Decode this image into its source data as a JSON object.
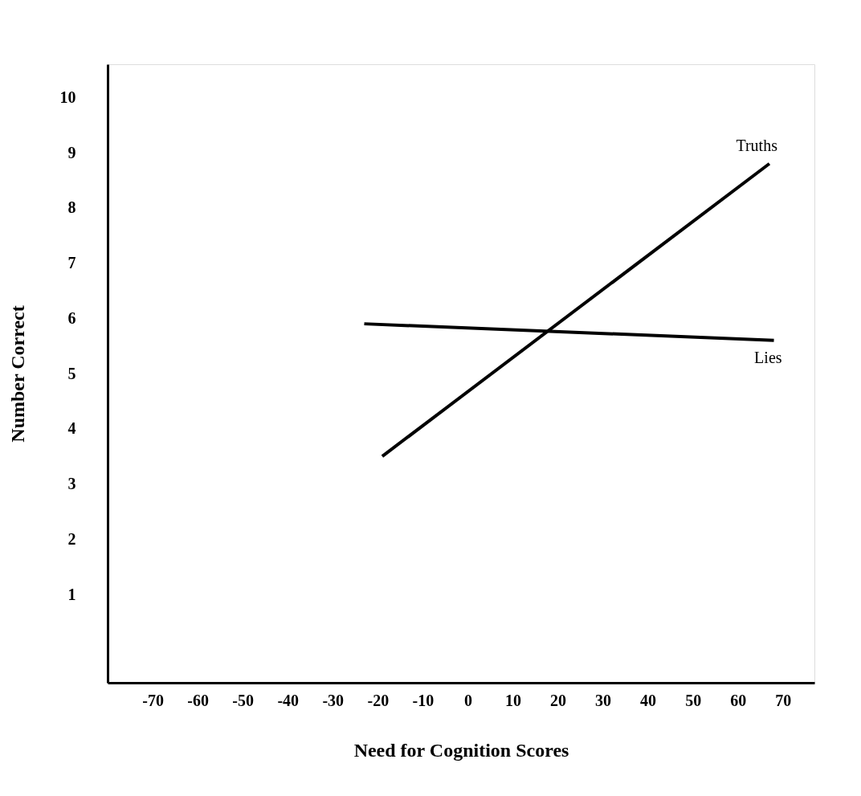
{
  "chart_data": {
    "type": "line",
    "xlabel": "Need for Cognition Scores",
    "ylabel": "Number Correct",
    "xlim": [
      -80,
      77
    ],
    "ylim": [
      -0.6,
      10.6
    ],
    "xticks": [
      -70,
      -60,
      -50,
      -40,
      -30,
      -20,
      -10,
      0,
      10,
      20,
      30,
      40,
      50,
      60,
      70
    ],
    "yticks": [
      1,
      2,
      3,
      4,
      5,
      6,
      7,
      8,
      9,
      10
    ],
    "series": [
      {
        "name": "Truths",
        "color": "#000000",
        "x": [
          -19,
          67
        ],
        "values": [
          3.5,
          8.8
        ]
      },
      {
        "name": "Lies",
        "color": "#000000",
        "x": [
          -23,
          68
        ],
        "values": [
          5.9,
          5.6
        ]
      }
    ],
    "grid": false,
    "marker": "none",
    "line_style": "solid"
  }
}
